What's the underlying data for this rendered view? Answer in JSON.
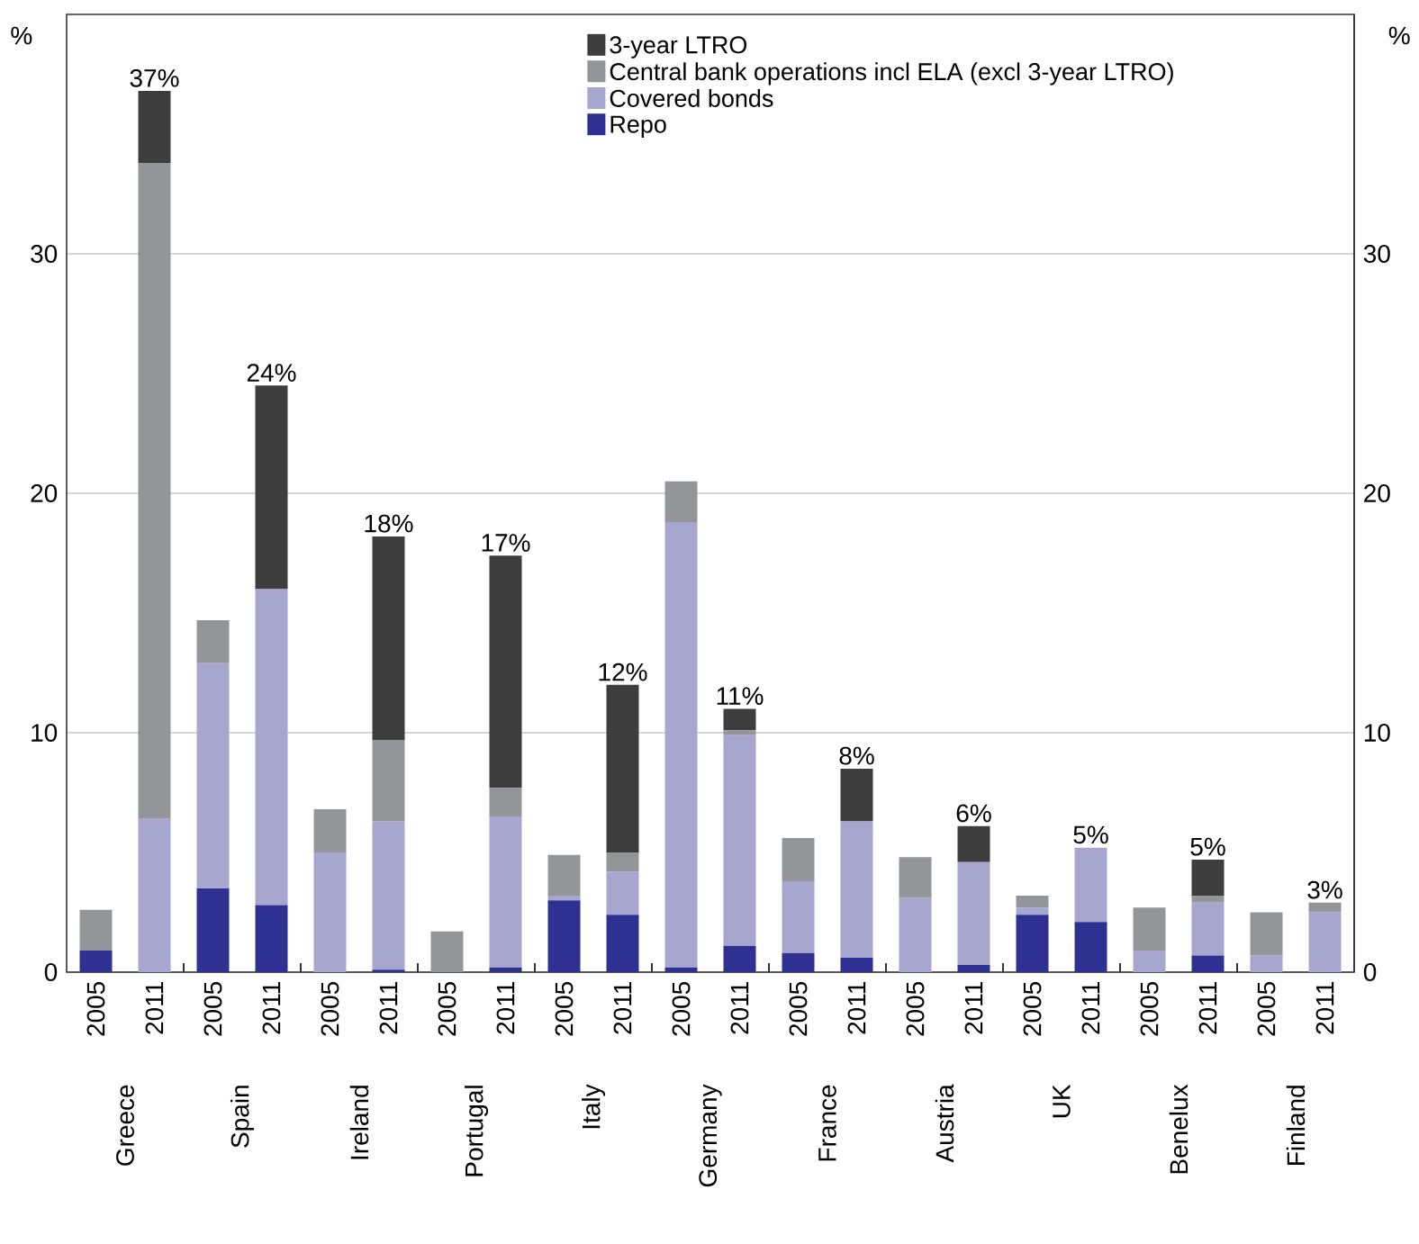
{
  "chart_data": {
    "type": "bar",
    "stacked": true,
    "categories": [
      "2005",
      "2011",
      "2005",
      "2011",
      "2005",
      "2011",
      "2005",
      "2011",
      "2005",
      "2011",
      "2005",
      "2011",
      "2005",
      "2011",
      "2005",
      "2011",
      "2005",
      "2011",
      "2005",
      "2011",
      "2005",
      "2011"
    ],
    "series": [
      {
        "name": "Repo",
        "color": "#2e3192",
        "values": [
          0.9,
          null,
          3.5,
          2.8,
          null,
          0.1,
          null,
          0.2,
          3.0,
          2.4,
          0.2,
          1.1,
          0.8,
          0.6,
          null,
          0.3,
          2.4,
          2.1,
          null,
          0.7,
          null,
          null
        ]
      },
      {
        "name": "Covered bonds",
        "color": "#a6a6cf",
        "values": [
          null,
          6.4,
          9.4,
          13.2,
          5.0,
          6.2,
          null,
          6.3,
          0.2,
          1.8,
          18.6,
          8.8,
          3.0,
          5.7,
          3.1,
          4.3,
          0.3,
          3.1,
          0.9,
          2.2,
          0.7,
          2.5
        ]
      },
      {
        "name": "Central bank operations incl ELA (excl 3-year LTRO)",
        "color": "#939598",
        "values": [
          1.7,
          27.4,
          1.8,
          null,
          1.8,
          3.4,
          1.7,
          1.2,
          1.7,
          0.8,
          1.7,
          0.2,
          1.8,
          null,
          1.7,
          null,
          0.5,
          null,
          1.8,
          0.3,
          1.8,
          0.4
        ]
      },
      {
        "name": "3-year LTRO",
        "color": "#3d3d3d",
        "values": [
          null,
          3.0,
          null,
          8.5,
          null,
          8.5,
          null,
          9.7,
          null,
          7.0,
          null,
          0.9,
          null,
          2.2,
          null,
          1.5,
          null,
          null,
          null,
          1.5,
          null,
          null
        ]
      }
    ],
    "totals": [
      null,
      "37%",
      null,
      "24%",
      null,
      "18%",
      null,
      "17%",
      null,
      "12%",
      null,
      "11%",
      null,
      "8%",
      null,
      "6%",
      null,
      "5%",
      null,
      "5%",
      null,
      "3%"
    ],
    "annotations": [
      "Greece",
      "Spain",
      "Ireland",
      "Portugal",
      "Italy",
      "Germany",
      "France",
      "Austria",
      "UK",
      "Benelux",
      "Finland"
    ],
    "ylabel": "%",
    "y2label": "%",
    "ylim": [
      0,
      40
    ],
    "yticks": [
      0,
      10,
      20,
      30
    ],
    "y2lim": [
      0,
      40
    ],
    "y2ticks": [
      0,
      10,
      20,
      30
    ],
    "grid": "y",
    "legend": "top right"
  }
}
